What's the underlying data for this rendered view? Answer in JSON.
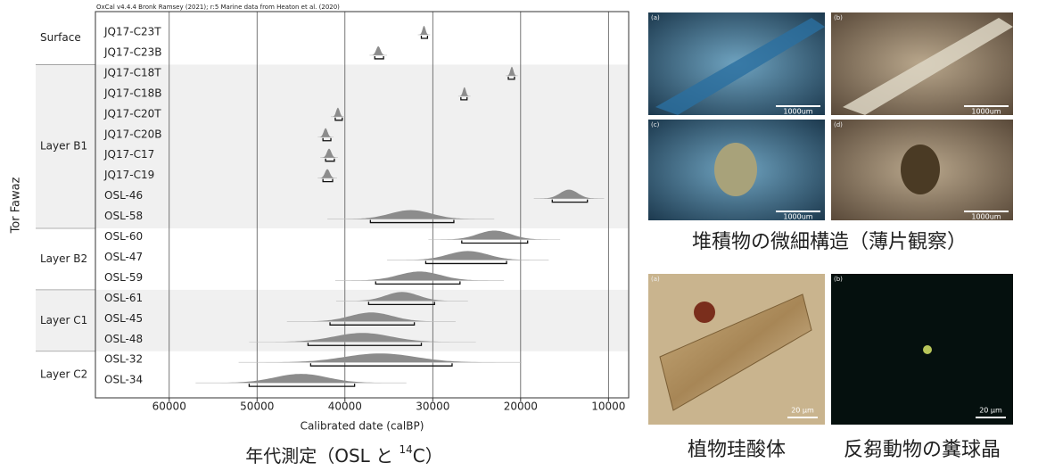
{
  "chart_data": {
    "type": "oxcal",
    "title": "OxCal v4.4.4 Bronk Ramsey (2021); r:5 Marine data from Heaton et al. (2020)",
    "ylabel": "Tor Fawaz",
    "xlabel": "Calibrated date (calBP)",
    "xlim": [
      68400,
      7700
    ],
    "xticks": [
      60000,
      50000,
      40000,
      30000,
      20000,
      10000
    ],
    "grid": true,
    "color": "#8c8c8c",
    "groups": [
      {
        "label": "Surface",
        "samples": [
          {
            "label": "JQ17-C23T",
            "peak": 31000,
            "range": [
              31300,
              30600
            ]
          },
          {
            "label": "JQ17-C23B",
            "peak": 36200,
            "range": [
              36600,
              35600
            ]
          }
        ]
      },
      {
        "label": "Layer B1",
        "samples": [
          {
            "label": "JQ17-C18T",
            "peak": 21000,
            "range": [
              21400,
              20700
            ]
          },
          {
            "label": "JQ17-C18B",
            "peak": 26400,
            "range": [
              26800,
              26100
            ]
          },
          {
            "label": "JQ17-C20T",
            "peak": 40800,
            "range": [
              41100,
              40300
            ]
          },
          {
            "label": "JQ17-C20B",
            "peak": 42200,
            "range": [
              42500,
              41600
            ]
          },
          {
            "label": "JQ17-C17",
            "peak": 41800,
            "range": [
              42200,
              41200
            ]
          },
          {
            "label": "JQ17-C19",
            "peak": 42000,
            "range": [
              42500,
              41400
            ]
          },
          {
            "label": "OSL-46",
            "peak": 14500,
            "range": [
              16400,
              12400
            ]
          },
          {
            "label": "OSL-58",
            "peak": 32500,
            "range": [
              37100,
              27600
            ]
          }
        ]
      },
      {
        "label": "Layer B2",
        "samples": [
          {
            "label": "OSL-60",
            "peak": 23000,
            "range": [
              26700,
              19200
            ]
          },
          {
            "label": "OSL-47",
            "peak": 26000,
            "range": [
              30800,
              21600
            ]
          },
          {
            "label": "OSL-59",
            "peak": 31500,
            "range": [
              36500,
              26900
            ]
          }
        ]
      },
      {
        "label": "Layer C1",
        "samples": [
          {
            "label": "OSL-61",
            "peak": 33500,
            "range": [
              37300,
              29800
            ]
          },
          {
            "label": "OSL-45",
            "peak": 37000,
            "range": [
              41700,
              32100
            ]
          },
          {
            "label": "OSL-48",
            "peak": 38000,
            "range": [
              44200,
              31300
            ]
          }
        ]
      },
      {
        "label": "Layer C2",
        "samples": [
          {
            "label": "OSL-32",
            "peak": 36000,
            "range": [
              43900,
              27800
            ]
          },
          {
            "label": "OSL-34",
            "peak": 45000,
            "range": [
              50900,
              38900
            ]
          }
        ]
      }
    ],
    "caption": {
      "text": "年代測定（OSL と ",
      "sup": "14",
      "end": "C）"
    }
  },
  "figures": {
    "thin_sections": {
      "caption": "堆積物の微細構造（薄片観察）",
      "panels": [
        {
          "label": "(a)",
          "scale": "1000um"
        },
        {
          "label": "(b)",
          "scale": "1000um"
        },
        {
          "label": "(c)",
          "scale": "1000um"
        },
        {
          "label": "(d)",
          "scale": "1000um"
        }
      ]
    },
    "micro": {
      "panels": [
        {
          "label": "(a)",
          "scale": "20 μm",
          "caption": "植物珪酸体"
        },
        {
          "label": "(b)",
          "scale": "20 μm",
          "caption": "反芻動物の糞球晶"
        }
      ]
    }
  }
}
